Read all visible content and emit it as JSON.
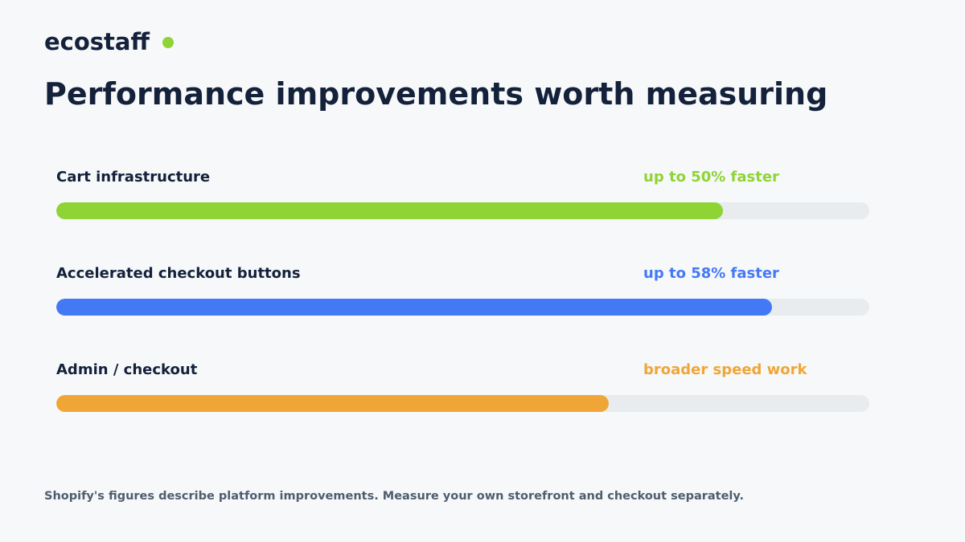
{
  "brand": {
    "name": "ecostaff",
    "dot_color": "#8fd435"
  },
  "title": "Performance improvements worth measuring",
  "footnote": "Shopify's figures describe platform improvements. Measure your own storefront and checkout separately.",
  "chart_data": {
    "type": "bar",
    "orientation": "horizontal",
    "categories": [
      "Cart infrastructure",
      "Accelerated checkout buttons",
      "Admin / checkout"
    ],
    "values": [
      0.82,
      0.88,
      0.68
    ],
    "value_unit": "fraction of bar filled",
    "labels": [
      "up to 50% faster",
      "up to 58% faster",
      "broader speed work"
    ],
    "colors": [
      "#8fd435",
      "#4479f6",
      "#f0a637"
    ],
    "track_color": "#e8ecef",
    "xlim": [
      0,
      1
    ],
    "grid": false,
    "legend": "none"
  }
}
